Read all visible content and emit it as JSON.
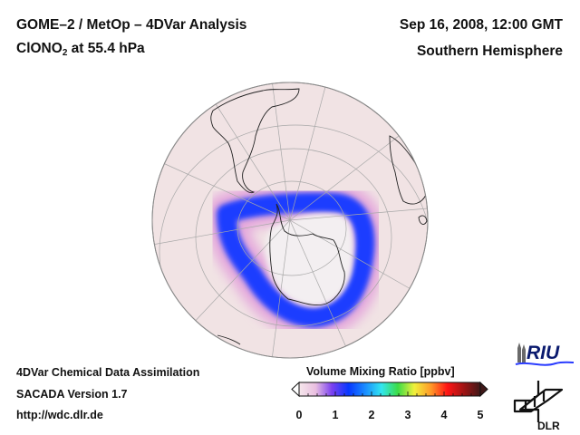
{
  "header": {
    "title_line1": "GOME–2 / MetOp – 4DVar Analysis",
    "species_prefix": "ClONO",
    "species_sub": "2",
    "species_suffix": " at 55.4 hPa",
    "date": "Sep 16, 2008, 12:00 GMT",
    "region": "Southern Hemisphere"
  },
  "footer": {
    "line1": "4DVar Chemical Data Assimilation",
    "line2": "SACADA Version 1.7",
    "line3": "http://wdc.dlr.de"
  },
  "colorbar": {
    "title": "Volume Mixing Ratio [ppbv]",
    "ticks": [
      "0",
      "1",
      "2",
      "3",
      "4",
      "5"
    ],
    "range": [
      0,
      5
    ],
    "stops": [
      "#f6e8ec",
      "#e9bfe0",
      "#7a40f0",
      "#0838ff",
      "#1a8cff",
      "#32e6f0",
      "#3cdc46",
      "#f0f03c",
      "#ff9a28",
      "#ff1414",
      "#a01414",
      "#401818"
    ]
  },
  "map": {
    "projection": "orthographic",
    "ring_color": "#1e3cff",
    "background_color": "#f1e3e4"
  },
  "logos": {
    "riu": "RIU",
    "dlr": "DLR"
  }
}
